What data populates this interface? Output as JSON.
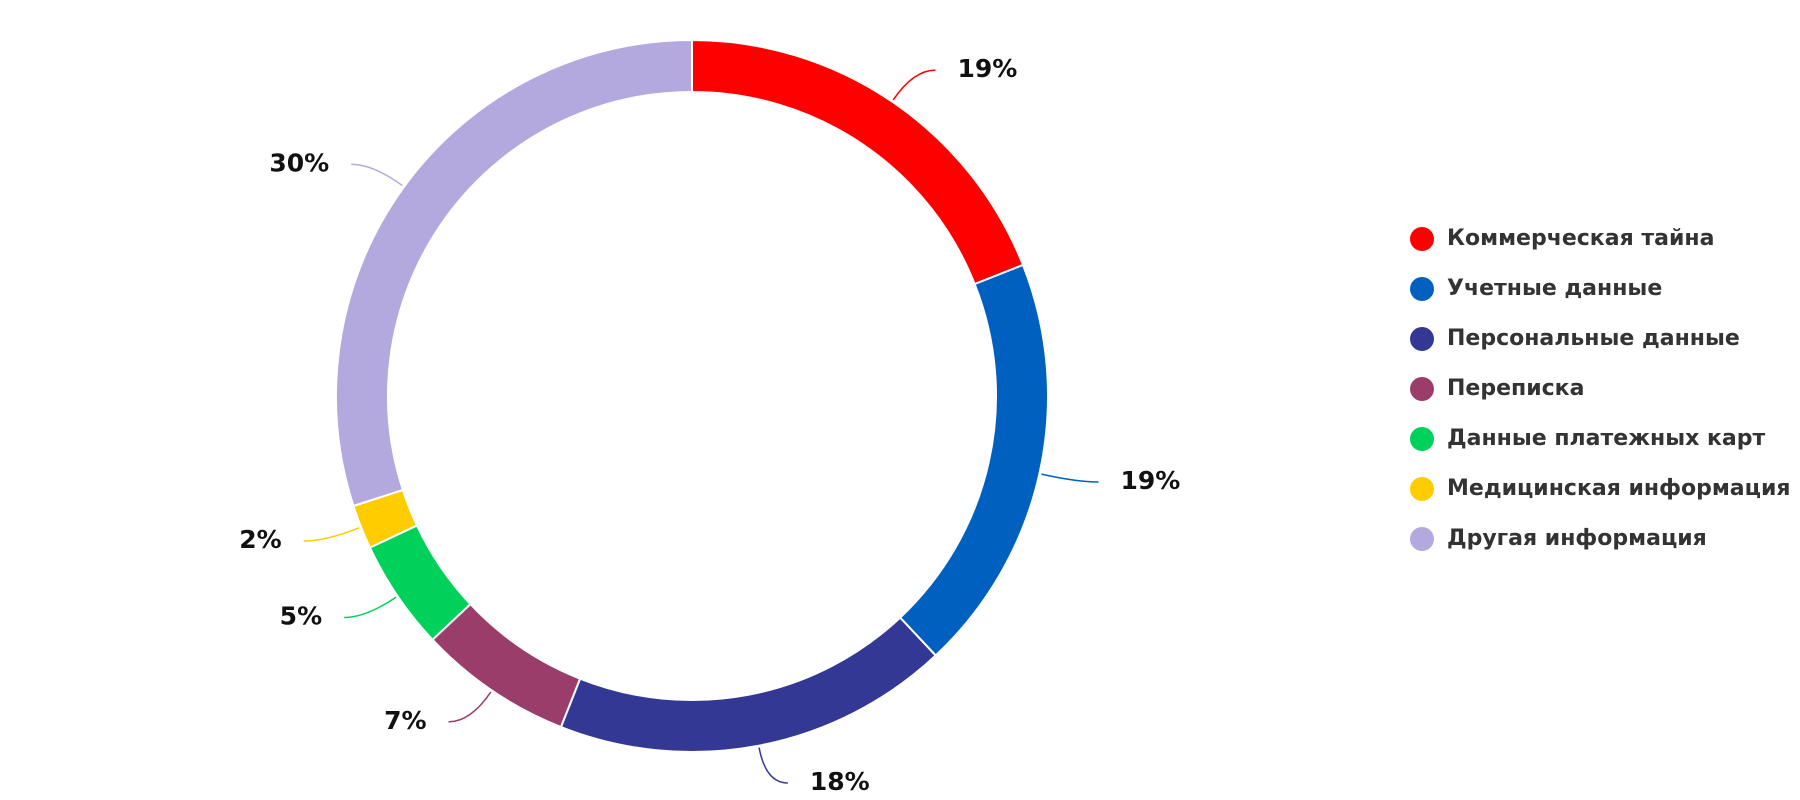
{
  "chart_data": {
    "type": "donut",
    "categories": [
      "Коммерческая тайна",
      "Учетные данные",
      "Персональные данные",
      "Переписка",
      "Данные платежных карт",
      "Медицинская информация",
      "Другая информация"
    ],
    "values": [
      19,
      19,
      18,
      7,
      5,
      2,
      30
    ],
    "value_labels": [
      "19%",
      "19%",
      "18%",
      "7%",
      "5%",
      "2%",
      "30%"
    ],
    "colors": [
      "#ff0000",
      "#0060bf",
      "#333894",
      "#9a3d6a",
      "#00d15a",
      "#ffcc00",
      "#b3a9de"
    ]
  }
}
